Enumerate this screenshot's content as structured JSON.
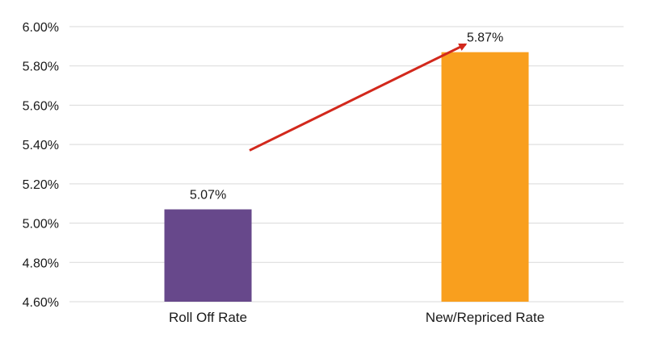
{
  "chart_data": {
    "type": "bar",
    "title": "",
    "xlabel": "",
    "ylabel": "",
    "categories": [
      "Roll Off Rate",
      "New/Repriced Rate"
    ],
    "values": [
      5.07,
      5.87
    ],
    "data_labels": [
      "5.07%",
      "5.87%"
    ],
    "bar_colors": [
      "#67488b",
      "#f99f1e"
    ],
    "ylim": [
      4.6,
      6.0
    ],
    "yticks": [
      4.6,
      4.8,
      5.0,
      5.2,
      5.4,
      5.6,
      5.8,
      6.0
    ],
    "ytick_labels": [
      "4.60%",
      "4.80%",
      "5.00%",
      "5.20%",
      "5.40%",
      "5.60%",
      "5.80%",
      "6.00%"
    ],
    "grid": true,
    "legend": "none",
    "annotation": {
      "type": "arrow",
      "color": "#d2281c",
      "from": {
        "x": "Roll Off Rate",
        "y": 5.37
      },
      "to": {
        "x": "New/Repriced Rate",
        "y": 5.91
      }
    }
  }
}
